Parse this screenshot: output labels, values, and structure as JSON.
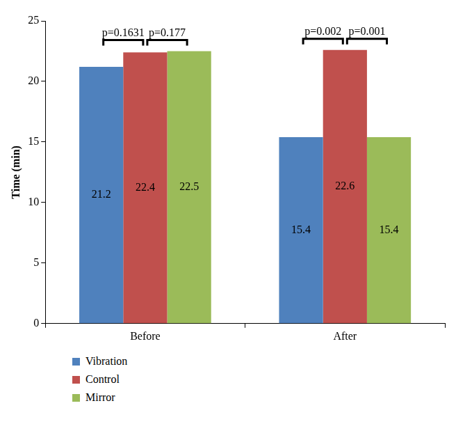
{
  "chart_data": {
    "type": "bar",
    "categories": [
      "Before",
      "After"
    ],
    "series": [
      {
        "name": "Vibration",
        "color": "#4f81bd",
        "values": [
          21.2,
          15.4
        ]
      },
      {
        "name": "Control",
        "color": "#c0504d",
        "values": [
          22.4,
          22.6
        ]
      },
      {
        "name": "Mirror",
        "color": "#9bbb59",
        "values": [
          22.5,
          15.4
        ]
      }
    ],
    "y_label": "Time (min)",
    "ylim": [
      0,
      25
    ],
    "yticks": [
      0,
      5,
      10,
      15,
      20,
      25
    ],
    "grid": false,
    "data_labels": true,
    "legend": "bottom",
    "annotations": [
      {
        "text": "p=0.1631",
        "category": "Before",
        "from": "Vibration",
        "to": "Control"
      },
      {
        "text": "p=0.177",
        "category": "Before",
        "from": "Control",
        "to": "Mirror"
      },
      {
        "text": "p=0.002",
        "category": "After",
        "from": "Vibration",
        "to": "Control"
      },
      {
        "text": "p=0.001",
        "category": "After",
        "from": "Control",
        "to": "Mirror"
      }
    ]
  }
}
